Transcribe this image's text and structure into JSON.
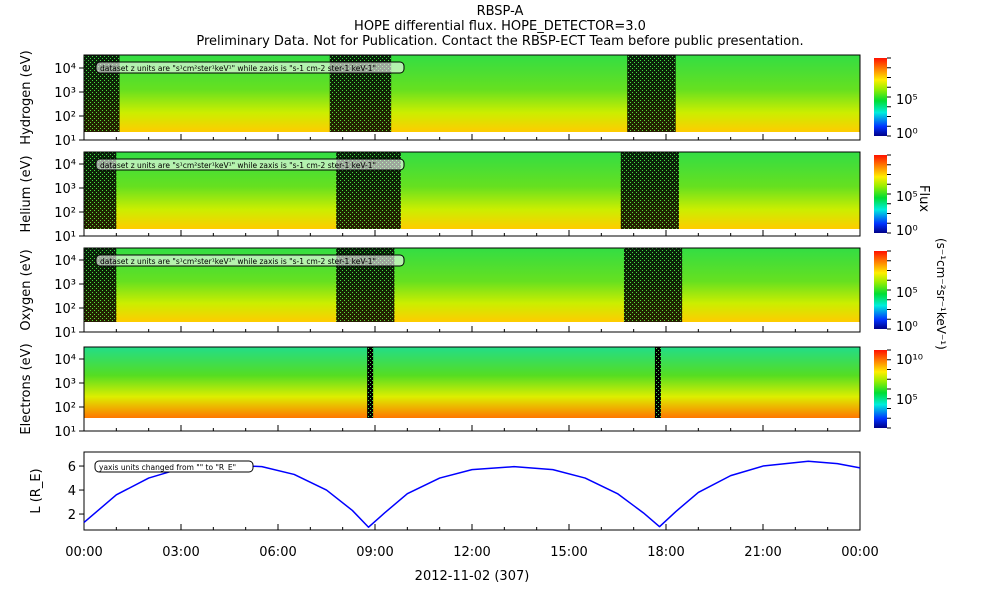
{
  "title": {
    "line1": "RBSP-A",
    "line2": "HOPE differential flux. HOPE_DETECTOR=3.0",
    "line3": "Preliminary Data. Not for Publication. Contact the RBSP-ECT Team before public presentation."
  },
  "annotation_units": "dataset z units are \"s¹cm²ster¹keV¹\" while zaxis is \"s-1 cm-2 ster-1 keV-1\"",
  "annotation_yaxis": "yaxis units changed from \"\" to \"R_E\"",
  "colorbar": {
    "label": "Flux",
    "units": "(s⁻¹cm⁻²sr⁻¹keV⁻¹)",
    "ticks_ion": [
      "10⁵",
      "10⁰"
    ],
    "ticks_electron": [
      "10¹⁰",
      "10⁵"
    ]
  },
  "chart_data": [
    {
      "type": "heatmap",
      "ylabel": "Hydrogen (eV)",
      "yticks": [
        "10⁴",
        "10³",
        "10²",
        "10¹"
      ],
      "colors": {
        "base": "#33dd33",
        "low_energy": "#ffcc00"
      }
    },
    {
      "type": "heatmap",
      "ylabel": "Helium (eV)",
      "yticks": [
        "10⁴",
        "10³",
        "10²",
        "10¹"
      ]
    },
    {
      "type": "heatmap",
      "ylabel": "Oxygen (eV)",
      "yticks": [
        "10⁴",
        "10³",
        "10²",
        "10¹"
      ]
    },
    {
      "type": "heatmap",
      "ylabel": "Electrons (eV)",
      "yticks": [
        "10⁴",
        "10³",
        "10²",
        "10¹"
      ]
    },
    {
      "type": "line",
      "ylabel": "L (R_E)",
      "yticks": [
        "6",
        "4",
        "2"
      ],
      "ylim": [
        0.67,
        7.17
      ],
      "color": "#0000ff",
      "x_hours": [
        0,
        1,
        2,
        3,
        4,
        4.7,
        5.5,
        6.5,
        7.5,
        8.3,
        8.8,
        9.3,
        10,
        11,
        12,
        13.3,
        14.5,
        15.5,
        16.5,
        17.3,
        17.8,
        18.3,
        19,
        20,
        21,
        22.4,
        23.3,
        24
      ],
      "L": [
        1.3,
        3.6,
        5.0,
        5.8,
        6.0,
        6.05,
        5.95,
        5.3,
        4.0,
        2.3,
        0.9,
        2.1,
        3.7,
        5.0,
        5.7,
        5.95,
        5.7,
        5.0,
        3.7,
        2.1,
        0.95,
        2.2,
        3.8,
        5.2,
        6.0,
        6.4,
        6.2,
        5.85
      ]
    }
  ],
  "xaxis": {
    "ticks": [
      "00:00",
      "03:00",
      "06:00",
      "09:00",
      "12:00",
      "15:00",
      "18:00",
      "21:00",
      "00:00"
    ],
    "label": "2012-11-02 (307)"
  }
}
